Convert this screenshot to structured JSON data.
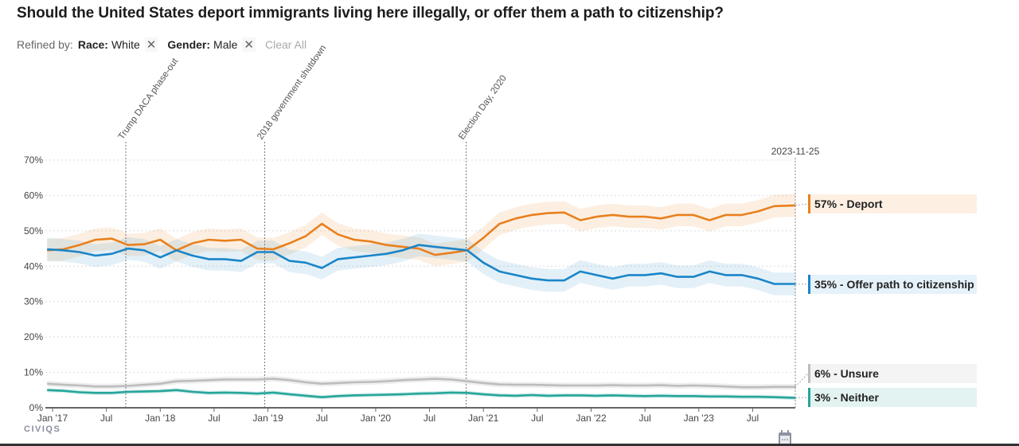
{
  "header": {
    "title": "Should the United States deport immigrants living here illegally, or offer them a path to citizenship?",
    "refined_by_label": "Refined by:",
    "filters": [
      {
        "key": "Race:",
        "value": "White",
        "remove_icon": "close-icon"
      },
      {
        "key": "Gender:",
        "value": "Male",
        "remove_icon": "close-icon"
      }
    ],
    "clear_all_label": "Clear All"
  },
  "footer": {
    "logo_text": "CIVIQS",
    "calendar_icon": "calendar-icon"
  },
  "colors": {
    "deport": "#e8801e",
    "offer": "#1a85c8",
    "unsure": "#bdbdbd",
    "neither": "#26a59a"
  },
  "legend": [
    {
      "id": "deport",
      "label": "57% - Deport",
      "bg": "#fdf0e3"
    },
    {
      "id": "offer",
      "label": "35% - Offer path to citizenship",
      "bg": "#e6f2fa"
    },
    {
      "id": "unsure",
      "label": "6% - Unsure",
      "bg": "#f4f4f4"
    },
    {
      "id": "neither",
      "label": "3% - Neither",
      "bg": "#e3f3f1"
    }
  ],
  "chart_data": {
    "type": "line",
    "title": "Should the United States deport immigrants living here illegally, or offer them a path to citizenship?",
    "xlabel": "",
    "ylabel": "",
    "ylim": [
      0,
      70
    ],
    "y_ticks": [
      "0%",
      "10%",
      "20%",
      "30%",
      "40%",
      "50%",
      "60%",
      "70%"
    ],
    "y_tick_values": [
      0,
      10,
      20,
      30,
      40,
      50,
      60,
      70
    ],
    "x_ticks": [
      {
        "label": "Jan '17",
        "t": 2017.0
      },
      {
        "label": "Jul",
        "t": 2017.5
      },
      {
        "label": "Jan '18",
        "t": 2018.0
      },
      {
        "label": "Jul",
        "t": 2018.5
      },
      {
        "label": "Jan '19",
        "t": 2019.0
      },
      {
        "label": "Jul",
        "t": 2019.5
      },
      {
        "label": "Jan '20",
        "t": 2020.0
      },
      {
        "label": "Jul",
        "t": 2020.5
      },
      {
        "label": "Jan '21",
        "t": 2021.0
      },
      {
        "label": "Jul",
        "t": 2021.5
      },
      {
        "label": "Jan '22",
        "t": 2022.0
      },
      {
        "label": "Jul",
        "t": 2022.5
      },
      {
        "label": "Jan '23",
        "t": 2023.0
      },
      {
        "label": "Jul",
        "t": 2023.5
      }
    ],
    "x_range": [
      2016.93,
      2023.9
    ],
    "end_date_label": "2023-11-25",
    "grid": true,
    "annotations": [
      {
        "label": "Trump DACA phase-out",
        "t": 2017.68
      },
      {
        "label": "2018 government shutdown",
        "t": 2018.97
      },
      {
        "label": "Election Day, 2020",
        "t": 2020.84
      }
    ],
    "x": [
      2016.95,
      2017.1,
      2017.25,
      2017.4,
      2017.55,
      2017.7,
      2017.85,
      2018.0,
      2018.15,
      2018.3,
      2018.45,
      2018.6,
      2018.75,
      2018.9,
      2019.05,
      2019.2,
      2019.35,
      2019.5,
      2019.65,
      2019.8,
      2019.95,
      2020.1,
      2020.25,
      2020.4,
      2020.55,
      2020.7,
      2020.85,
      2021.0,
      2021.15,
      2021.3,
      2021.45,
      2021.6,
      2021.75,
      2021.9,
      2022.05,
      2022.2,
      2022.35,
      2022.5,
      2022.65,
      2022.8,
      2022.95,
      2023.1,
      2023.25,
      2023.4,
      2023.55,
      2023.7,
      2023.9
    ],
    "series": [
      {
        "name": "Deport",
        "final": 57,
        "values": [
          44.5,
          44.8,
          46.0,
          47.5,
          47.8,
          46.0,
          46.2,
          47.5,
          44.5,
          46.5,
          47.5,
          47.2,
          47.5,
          45.0,
          44.8,
          46.5,
          48.5,
          52.0,
          49.0,
          47.5,
          47.0,
          46.0,
          45.5,
          45.0,
          43.2,
          43.8,
          44.5,
          48.0,
          52.0,
          53.5,
          54.5,
          55.0,
          55.2,
          53.0,
          54.0,
          54.5,
          54.0,
          54.0,
          53.5,
          54.5,
          54.5,
          53.0,
          54.5,
          54.5,
          55.5,
          57.0,
          57.2
        ]
      },
      {
        "name": "Offer path to citizenship",
        "final": 35,
        "values": [
          44.8,
          44.5,
          44.0,
          43.0,
          43.5,
          45.0,
          44.5,
          42.5,
          44.5,
          43.0,
          42.0,
          42.0,
          41.5,
          44.0,
          44.0,
          41.5,
          41.0,
          39.5,
          42.0,
          42.5,
          43.0,
          43.5,
          44.5,
          46.0,
          45.5,
          45.0,
          44.5,
          41.0,
          38.5,
          37.5,
          36.5,
          36.0,
          36.0,
          38.5,
          37.5,
          36.5,
          37.5,
          37.5,
          38.0,
          37.0,
          37.0,
          38.5,
          37.5,
          37.5,
          36.5,
          35.0,
          35.0
        ]
      },
      {
        "name": "Unsure",
        "final": 6,
        "values": [
          6.8,
          6.5,
          6.3,
          6.0,
          6.0,
          6.2,
          6.5,
          6.8,
          7.5,
          7.6,
          7.8,
          8.0,
          8.0,
          8.0,
          8.2,
          7.8,
          7.2,
          6.8,
          7.0,
          7.2,
          7.3,
          7.5,
          7.8,
          8.0,
          8.2,
          8.0,
          7.5,
          7.0,
          6.6,
          6.5,
          6.5,
          6.4,
          6.3,
          6.3,
          6.3,
          6.4,
          6.3,
          6.3,
          6.4,
          6.2,
          6.3,
          6.2,
          6.0,
          5.8,
          5.8,
          5.9,
          5.9
        ]
      },
      {
        "name": "Neither",
        "final": 3,
        "values": [
          5.0,
          4.8,
          4.4,
          4.2,
          4.2,
          4.5,
          4.6,
          4.7,
          5.0,
          4.5,
          4.2,
          4.3,
          4.2,
          4.0,
          4.3,
          3.8,
          3.4,
          3.0,
          3.3,
          3.5,
          3.6,
          3.7,
          3.8,
          4.0,
          4.1,
          4.3,
          4.2,
          3.8,
          3.5,
          3.4,
          3.6,
          3.4,
          3.5,
          3.5,
          3.4,
          3.5,
          3.4,
          3.3,
          3.4,
          3.3,
          3.3,
          3.2,
          3.2,
          3.1,
          3.1,
          3.0,
          2.8
        ]
      }
    ]
  }
}
